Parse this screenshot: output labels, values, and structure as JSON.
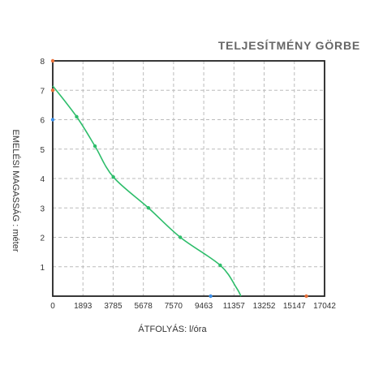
{
  "chart_data": {
    "type": "line",
    "title": "TELJESÍTMÉNY GÖRBE",
    "xlabel": "ÁTFOLYÁS: l/óra",
    "ylabel": "EMELÉSI MAGASSÁG : méter",
    "x_ticks": [
      "0",
      "1893",
      "3785",
      "5678",
      "7570",
      "9463",
      "11357",
      "13252",
      "15147",
      "17042"
    ],
    "y_ticks": [
      "1",
      "2",
      "3",
      "4",
      "5",
      "6",
      "7",
      "8"
    ],
    "xlim": [
      0,
      17042
    ],
    "ylim": [
      0,
      8
    ],
    "grid": true,
    "series": [
      {
        "color": "#2ebd6b",
        "points": [
          {
            "x": 0,
            "y": 7.15
          },
          {
            "x": 1500,
            "y": 6.1
          },
          {
            "x": 2650,
            "y": 5.1
          },
          {
            "x": 3800,
            "y": 4.05
          },
          {
            "x": 6000,
            "y": 3.0
          },
          {
            "x": 8000,
            "y": 2.0
          },
          {
            "x": 10500,
            "y": 1.05
          },
          {
            "x": 11500,
            "y": 0.3
          },
          {
            "x": 11800,
            "y": 0.0
          }
        ],
        "markers": [
          {
            "x": 1500,
            "y": 6.1
          },
          {
            "x": 2650,
            "y": 5.1
          },
          {
            "x": 3800,
            "y": 4.05
          },
          {
            "x": 6000,
            "y": 3.0
          },
          {
            "x": 8000,
            "y": 2.0
          },
          {
            "x": 10500,
            "y": 1.05
          }
        ]
      }
    ],
    "axis_markers": [
      {
        "axis": "y",
        "value": 8,
        "color": "#e8703a"
      },
      {
        "axis": "y",
        "value": 7,
        "color": "#e8703a"
      },
      {
        "axis": "y",
        "value": 6,
        "color": "#3a8ee8"
      },
      {
        "axis": "x",
        "value": 9900,
        "color": "#3a8ee8"
      },
      {
        "axis": "x",
        "value": 15900,
        "color": "#e8703a"
      }
    ]
  }
}
